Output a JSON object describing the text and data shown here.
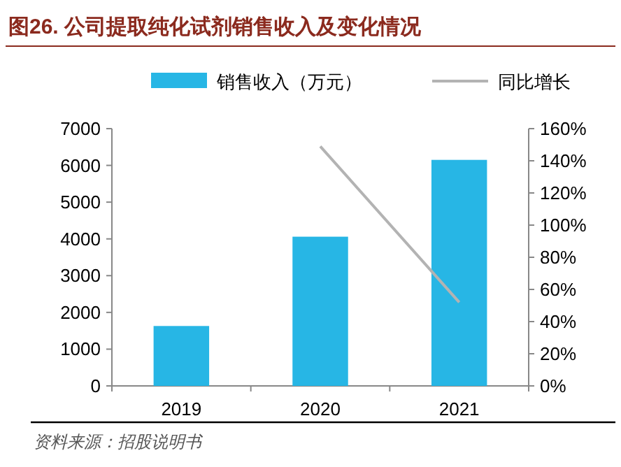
{
  "chart_data": {
    "type": "bar",
    "title": "图26. 公司提取纯化试剂销售收入及变化情况",
    "categories": [
      "2019",
      "2020",
      "2021"
    ],
    "series": [
      {
        "name": "销售收入（万元）",
        "color": "#27b6e5",
        "values": [
          1630,
          4060,
          6150
        ]
      },
      {
        "name": "同比增长",
        "type": "line",
        "axis": "y2",
        "color": "#b3b3b3",
        "values": [
          null,
          149,
          52
        ]
      }
    ],
    "ylim": [
      0,
      7000
    ],
    "yticks": [
      0,
      1000,
      2000,
      3000,
      4000,
      5000,
      6000,
      7000
    ],
    "y2lim": [
      0,
      160
    ],
    "y2ticks": [
      {
        "value": 0,
        "label": "0%"
      },
      {
        "value": 20,
        "label": "20%"
      },
      {
        "value": 40,
        "label": "40%"
      },
      {
        "value": 60,
        "label": "60%"
      },
      {
        "value": 80,
        "label": "80%"
      },
      {
        "value": 100,
        "label": "100%"
      },
      {
        "value": 120,
        "label": "120%"
      },
      {
        "value": 140,
        "label": "140%"
      },
      {
        "value": 160,
        "label": "160%"
      }
    ],
    "legend": "top",
    "grid": false,
    "annotations": [
      "资料来源：招股说明书"
    ]
  }
}
